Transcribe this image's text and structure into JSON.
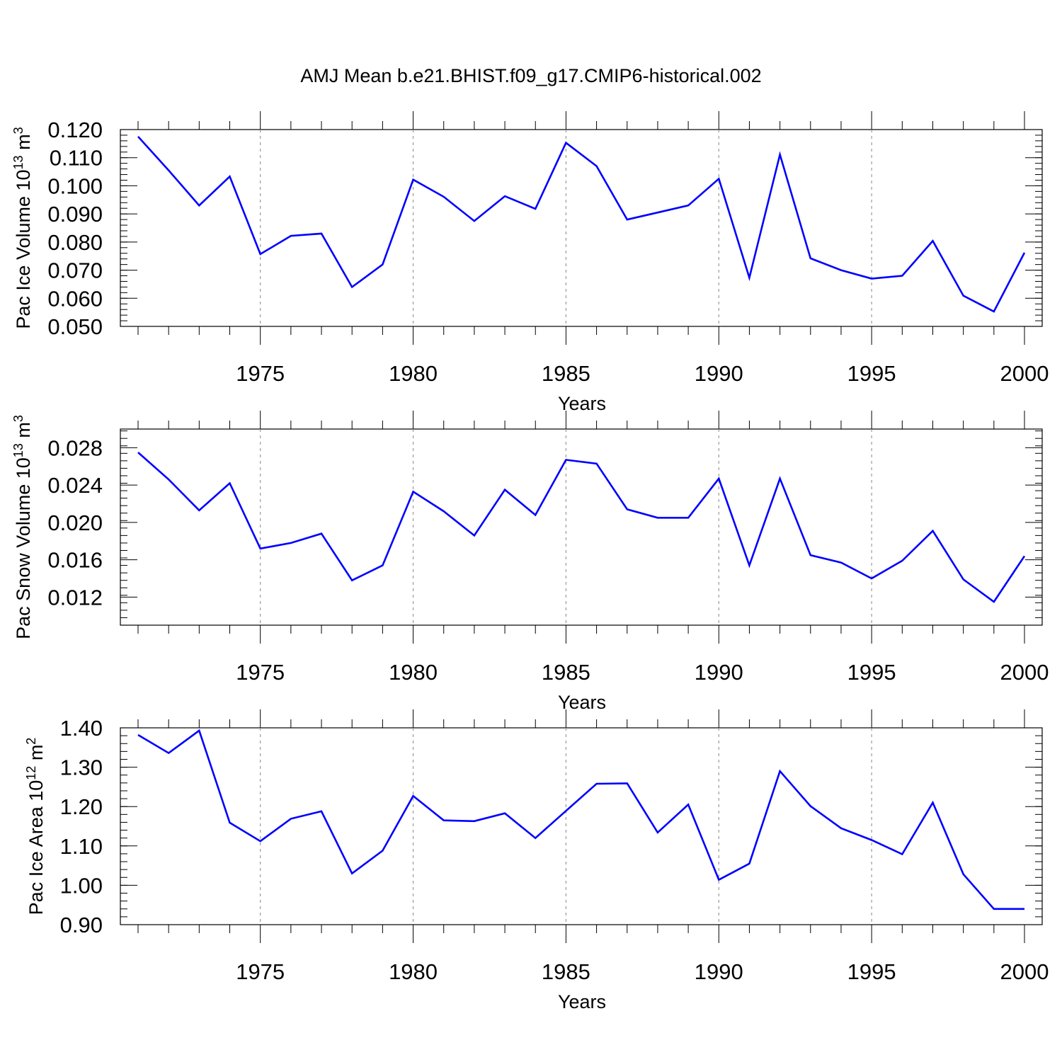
{
  "title": "AMJ Mean b.e21.BHIST.f09_g17.CMIP6-historical.002",
  "chart_data": [
    {
      "type": "line",
      "xlabel": "Years",
      "ylabel": "Pac Ice Volume 10",
      "ylabel_exponent": "13",
      "ylabel_unit": " m",
      "ylabel_unit_exponent": "3",
      "xlim": [
        1971,
        2000
      ],
      "ylim": [
        0.05,
        0.12
      ],
      "yticks": [
        0.05,
        0.06,
        0.07,
        0.08,
        0.09,
        0.1,
        0.11,
        0.12
      ],
      "ytick_labels": [
        "0.050",
        "0.060",
        "0.070",
        "0.080",
        "0.090",
        "0.100",
        "0.110",
        "0.120"
      ],
      "xticks": [
        1975,
        1980,
        1985,
        1990,
        1995,
        2000
      ],
      "xtick_labels": [
        "1975",
        "1980",
        "1985",
        "1990",
        "1995",
        "2000"
      ],
      "line_color": "#0000ff",
      "grid": "vertical dashed at labeled years",
      "x": [
        1971,
        1972,
        1973,
        1974,
        1975,
        1976,
        1977,
        1978,
        1979,
        1980,
        1981,
        1982,
        1983,
        1984,
        1985,
        1986,
        1987,
        1988,
        1989,
        1990,
        1991,
        1992,
        1993,
        1994,
        1995,
        1996,
        1997,
        1998,
        1999,
        2000
      ],
      "values": [
        0.1175,
        0.1055,
        0.093,
        0.1033,
        0.0757,
        0.0822,
        0.083,
        0.064,
        0.072,
        0.1022,
        0.0961,
        0.0875,
        0.0963,
        0.0918,
        0.1153,
        0.107,
        0.088,
        0.0905,
        0.093,
        0.1025,
        0.0673,
        0.1111,
        0.0742,
        0.07,
        0.067,
        0.068,
        0.0804,
        0.0609,
        0.0553,
        0.0762
      ]
    },
    {
      "type": "line",
      "xlabel": "Years",
      "ylabel": "Pac Snow Volume 10",
      "ylabel_exponent": "13",
      "ylabel_unit": " m",
      "ylabel_unit_exponent": "3",
      "xlim": [
        1971,
        2000
      ],
      "ylim": [
        0.009,
        0.03
      ],
      "yticks": [
        0.012,
        0.016,
        0.02,
        0.024,
        0.028
      ],
      "ytick_labels": [
        "0.012",
        "0.016",
        "0.020",
        "0.024",
        "0.028"
      ],
      "xticks": [
        1975,
        1980,
        1985,
        1990,
        1995,
        2000
      ],
      "xtick_labels": [
        "1975",
        "1980",
        "1985",
        "1990",
        "1995",
        "2000"
      ],
      "line_color": "#0000ff",
      "grid": "vertical dashed at labeled years",
      "x": [
        1971,
        1972,
        1973,
        1974,
        1975,
        1976,
        1977,
        1978,
        1979,
        1980,
        1981,
        1982,
        1983,
        1984,
        1985,
        1986,
        1987,
        1988,
        1989,
        1990,
        1991,
        1992,
        1993,
        1994,
        1995,
        1996,
        1997,
        1998,
        1999,
        2000
      ],
      "values": [
        0.0275,
        0.0246,
        0.0213,
        0.0242,
        0.0172,
        0.0178,
        0.0188,
        0.0138,
        0.0154,
        0.0233,
        0.0212,
        0.0186,
        0.0235,
        0.0208,
        0.0267,
        0.0263,
        0.0214,
        0.0205,
        0.0205,
        0.0247,
        0.0154,
        0.0247,
        0.0165,
        0.0157,
        0.014,
        0.0159,
        0.0191,
        0.0139,
        0.0115,
        0.0164
      ]
    },
    {
      "type": "line",
      "xlabel": "Years",
      "ylabel": "Pac Ice Area 10",
      "ylabel_exponent": "12",
      "ylabel_unit": " m",
      "ylabel_unit_exponent": "2",
      "xlim": [
        1971,
        2000
      ],
      "ylim": [
        0.9,
        1.4
      ],
      "yticks": [
        0.9,
        1.0,
        1.1,
        1.2,
        1.3,
        1.4
      ],
      "ytick_labels": [
        "0.90",
        "1.00",
        "1.10",
        "1.20",
        "1.30",
        "1.40"
      ],
      "xticks": [
        1975,
        1980,
        1985,
        1990,
        1995,
        2000
      ],
      "xtick_labels": [
        "1975",
        "1980",
        "1985",
        "1990",
        "1995",
        "2000"
      ],
      "line_color": "#0000ff",
      "grid": "vertical dashed at labeled years",
      "x": [
        1971,
        1972,
        1973,
        1974,
        1975,
        1976,
        1977,
        1978,
        1979,
        1980,
        1981,
        1982,
        1983,
        1984,
        1985,
        1986,
        1987,
        1988,
        1989,
        1990,
        1991,
        1992,
        1993,
        1994,
        1995,
        1996,
        1997,
        1998,
        1999,
        2000
      ],
      "values": [
        1.382,
        1.336,
        1.393,
        1.159,
        1.112,
        1.169,
        1.188,
        1.03,
        1.088,
        1.227,
        1.165,
        1.163,
        1.183,
        1.12,
        1.189,
        1.258,
        1.259,
        1.134,
        1.205,
        1.014,
        1.055,
        1.29,
        1.201,
        1.145,
        1.115,
        1.079,
        1.21,
        1.028,
        0.94,
        0.94
      ]
    }
  ]
}
